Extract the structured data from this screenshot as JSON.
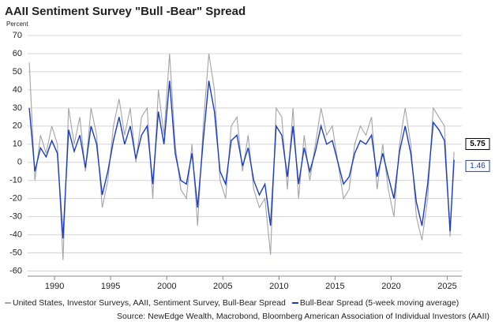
{
  "chart_data": {
    "type": "line",
    "title": "AAII Sentiment Survey \"Bull  -Bear\" Spread",
    "y_label": "Percent",
    "source": "Source: NewEdge Wealth, Macrobond, Bloomberg American Association of Individual Investors (AAII)",
    "x": [
      1987.75,
      1988.25,
      1988.75,
      1989.25,
      1989.75,
      1990.25,
      1990.75,
      1991.25,
      1991.75,
      1992.25,
      1992.75,
      1993.25,
      1993.75,
      1994.25,
      1994.75,
      1995.25,
      1995.75,
      1996.25,
      1996.75,
      1997.25,
      1997.75,
      1998.25,
      1998.75,
      1999.25,
      1999.75,
      2000.25,
      2000.75,
      2001.25,
      2001.75,
      2002.25,
      2002.75,
      2003.25,
      2003.75,
      2004.25,
      2004.75,
      2005.25,
      2005.75,
      2006.25,
      2006.75,
      2007.25,
      2007.75,
      2008.25,
      2008.75,
      2009.25,
      2009.75,
      2010.25,
      2010.75,
      2011.25,
      2011.75,
      2012.25,
      2012.75,
      2013.25,
      2013.75,
      2014.25,
      2014.75,
      2015.25,
      2015.75,
      2016.25,
      2016.75,
      2017.25,
      2017.75,
      2018.25,
      2018.75,
      2019.25,
      2019.75,
      2020.25,
      2020.75,
      2021.25,
      2021.75,
      2022.25,
      2022.75,
      2023.25,
      2023.75,
      2024.25,
      2024.75,
      2025.25,
      2025.6
    ],
    "series": [
      {
        "name": "United States, Investor Surveys, AAII, Sentiment Survey, Bull-Bear Spread",
        "color": "#a3a3ab",
        "values": [
          55,
          -10,
          15,
          5,
          20,
          10,
          -54,
          30,
          10,
          25,
          -5,
          30,
          15,
          -25,
          -10,
          20,
          35,
          15,
          30,
          0,
          25,
          30,
          -20,
          40,
          15,
          60,
          10,
          -15,
          -20,
          10,
          -35,
          20,
          60,
          40,
          -10,
          -20,
          20,
          25,
          -5,
          15,
          -15,
          -25,
          -20,
          -51,
          30,
          25,
          -15,
          30,
          -20,
          15,
          -10,
          10,
          30,
          15,
          20,
          0,
          -20,
          -15,
          10,
          20,
          15,
          25,
          -15,
          10,
          -15,
          -30,
          10,
          30,
          10,
          -30,
          -43,
          -20,
          30,
          25,
          20,
          -41,
          5.75
        ]
      },
      {
        "name": "Bull-Bear Spread (5-week moving average)",
        "color": "#1a3cc4",
        "values": [
          30,
          -5,
          8,
          3,
          12,
          5,
          -42,
          18,
          6,
          15,
          -3,
          20,
          10,
          -18,
          -5,
          12,
          25,
          10,
          20,
          2,
          15,
          20,
          -12,
          28,
          10,
          45,
          5,
          -10,
          -12,
          5,
          -25,
          12,
          45,
          28,
          -5,
          -12,
          12,
          15,
          -2,
          8,
          -10,
          -18,
          -12,
          -35,
          20,
          15,
          -8,
          20,
          -12,
          8,
          -5,
          6,
          20,
          10,
          12,
          0,
          -12,
          -8,
          5,
          12,
          10,
          15,
          -8,
          5,
          -8,
          -20,
          6,
          20,
          5,
          -22,
          -35,
          -12,
          22,
          18,
          12,
          -38,
          1.46
        ]
      }
    ],
    "xlim": [
      1987.6,
      2026.3
    ],
    "xticks": [
      1990,
      1995,
      2000,
      2005,
      2010,
      2015,
      2020,
      2025
    ],
    "ylim": [
      -65,
      70
    ],
    "yticks": [
      -60,
      -50,
      -40,
      -30,
      -20,
      -10,
      0,
      10,
      20,
      30,
      40,
      50,
      60,
      70
    ],
    "grid": true
  }
}
